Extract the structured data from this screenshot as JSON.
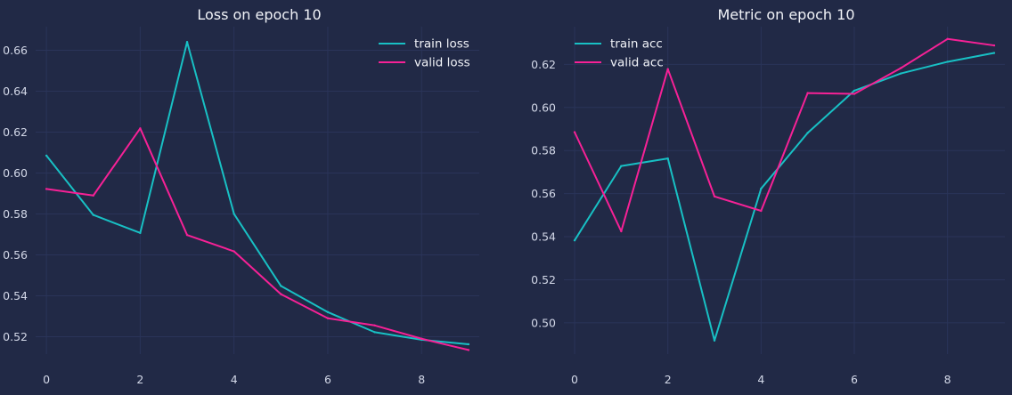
{
  "chart_data": [
    {
      "type": "line",
      "title": "Loss on epoch 10",
      "xlim": [
        -0.23,
        9.23
      ],
      "ylim": [
        0.5115,
        0.6715
      ],
      "x_ticks": [
        0,
        2,
        4,
        6,
        8
      ],
      "y_ticks": [
        0.52,
        0.54,
        0.56,
        0.58,
        0.6,
        0.62,
        0.64,
        0.66
      ],
      "y_tick_labels": [
        "0.52",
        "0.54",
        "0.56",
        "0.58",
        "0.60",
        "0.62",
        "0.64",
        "0.66"
      ],
      "grid": true,
      "legend_position": "top-right",
      "x": [
        0,
        1,
        2,
        3,
        4,
        5,
        6,
        7,
        8,
        9
      ],
      "series": [
        {
          "name": "train loss",
          "color": "#18C0C4",
          "values": [
            0.6085,
            0.5795,
            0.5707,
            0.664,
            0.58,
            0.5448,
            0.532,
            0.5222,
            0.5185,
            0.5163
          ]
        },
        {
          "name": "valid loss",
          "color": "#F62196",
          "values": [
            0.5922,
            0.589,
            0.6218,
            0.5697,
            0.5617,
            0.5408,
            0.529,
            0.5255,
            0.519,
            0.5135
          ]
        }
      ]
    },
    {
      "type": "line",
      "title": "Metric on epoch 10",
      "xlim": [
        -0.23,
        9.23
      ],
      "ylim": [
        0.4855,
        0.6375
      ],
      "x_ticks": [
        0,
        2,
        4,
        6,
        8
      ],
      "y_ticks": [
        0.5,
        0.52,
        0.54,
        0.56,
        0.58,
        0.6,
        0.62
      ],
      "y_tick_labels": [
        "0.50",
        "0.52",
        "0.54",
        "0.56",
        "0.58",
        "0.60",
        "0.62"
      ],
      "grid": true,
      "legend_position": "top-left",
      "x": [
        0,
        1,
        2,
        3,
        4,
        5,
        6,
        7,
        8,
        9
      ],
      "series": [
        {
          "name": "train acc",
          "color": "#18C0C4",
          "values": [
            0.5383,
            0.5728,
            0.5763,
            0.4918,
            0.5623,
            0.5882,
            0.6078,
            0.6158,
            0.6212,
            0.6253
          ]
        },
        {
          "name": "valid acc",
          "color": "#F62196",
          "values": [
            0.5885,
            0.5425,
            0.6178,
            0.5587,
            0.552,
            0.6067,
            0.6063,
            0.6183,
            0.6318,
            0.6288
          ]
        }
      ]
    }
  ]
}
